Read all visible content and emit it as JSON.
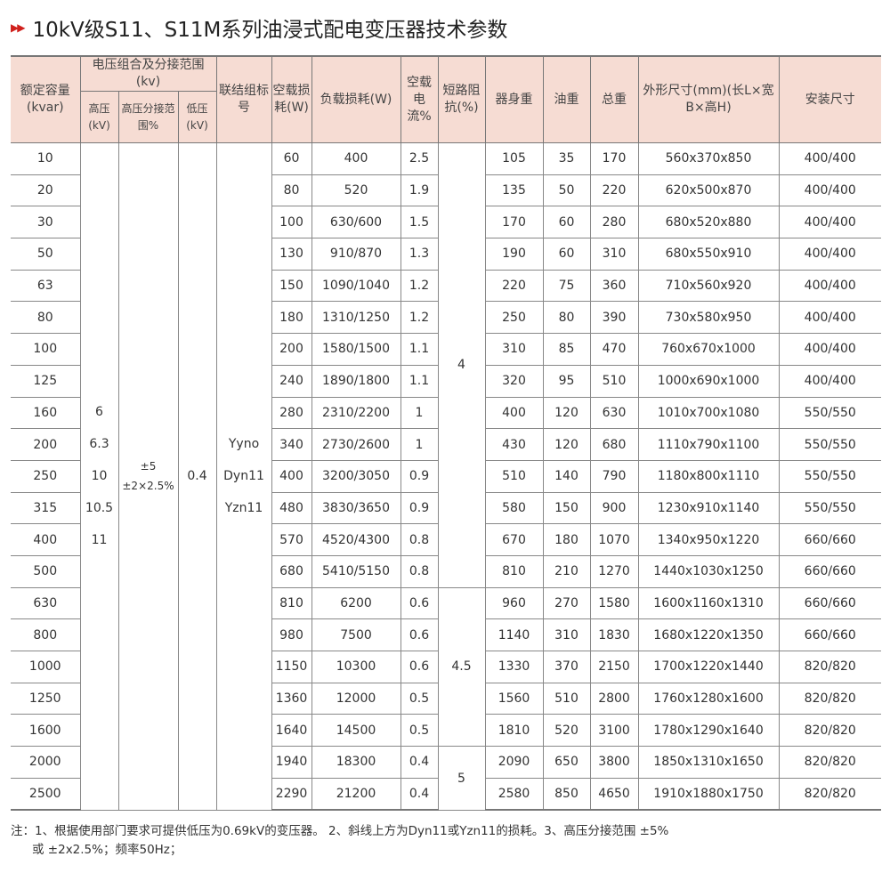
{
  "title": "10kV级S11、S11M系列油浸式配电变压器技术参数",
  "header": {
    "capacity": "额定容量(kvar)",
    "voltage_group": "电压组合及分接范围(kv)",
    "hv": "高压(kV)",
    "tap": "高压分接范围%",
    "lv": "低压(kV)",
    "connection": "联结组标号",
    "no_load_loss": "空载损耗(W)",
    "load_loss": "负载损耗(W)",
    "no_load_current": "空载电流%",
    "impedance": "短路阻抗(%)",
    "body_weight": "器身重",
    "oil_weight": "油重",
    "total_weight": "总重",
    "dimensions": "外形尺寸(mm)(长L×宽B×高H)",
    "install": "安装尺寸"
  },
  "merged": {
    "hv": [
      "6",
      "6.3",
      "10",
      "10.5",
      "11"
    ],
    "tap": [
      "±5",
      "±2×2.5%"
    ],
    "lv": "0.4",
    "connection": [
      "Yyno",
      "Dyn11",
      "Yzn11"
    ],
    "impedance": [
      "4",
      "4.5",
      "5"
    ]
  },
  "rows": [
    [
      "10",
      "60",
      "400",
      "2.5",
      "105",
      "35",
      "170",
      "560x370x850",
      "400/400"
    ],
    [
      "20",
      "80",
      "520",
      "1.9",
      "135",
      "50",
      "220",
      "620x500x870",
      "400/400"
    ],
    [
      "30",
      "100",
      "630/600",
      "1.5",
      "170",
      "60",
      "280",
      "680x520x880",
      "400/400"
    ],
    [
      "50",
      "130",
      "910/870",
      "1.3",
      "190",
      "60",
      "310",
      "680x550x910",
      "400/400"
    ],
    [
      "63",
      "150",
      "1090/1040",
      "1.2",
      "220",
      "75",
      "360",
      "710x560x920",
      "400/400"
    ],
    [
      "80",
      "180",
      "1310/1250",
      "1.2",
      "250",
      "80",
      "390",
      "730x580x950",
      "400/400"
    ],
    [
      "100",
      "200",
      "1580/1500",
      "1.1",
      "310",
      "85",
      "470",
      "760x670x1000",
      "400/400"
    ],
    [
      "125",
      "240",
      "1890/1800",
      "1.1",
      "320",
      "95",
      "510",
      "1000x690x1000",
      "400/400"
    ],
    [
      "160",
      "280",
      "2310/2200",
      "1",
      "400",
      "120",
      "630",
      "1010x700x1080",
      "550/550"
    ],
    [
      "200",
      "340",
      "2730/2600",
      "1",
      "430",
      "120",
      "680",
      "1110x790x1100",
      "550/550"
    ],
    [
      "250",
      "400",
      "3200/3050",
      "0.9",
      "510",
      "140",
      "790",
      "1180x800x1110",
      "550/550"
    ],
    [
      "315",
      "480",
      "3830/3650",
      "0.9",
      "580",
      "150",
      "900",
      "1230x910x1140",
      "550/550"
    ],
    [
      "400",
      "570",
      "4520/4300",
      "0.8",
      "670",
      "180",
      "1070",
      "1340x950x1220",
      "660/660"
    ],
    [
      "500",
      "680",
      "5410/5150",
      "0.8",
      "810",
      "210",
      "1270",
      "1440x1030x1250",
      "660/660"
    ],
    [
      "630",
      "810",
      "6200",
      "0.6",
      "960",
      "270",
      "1580",
      "1600x1160x1310",
      "660/660"
    ],
    [
      "800",
      "980",
      "7500",
      "0.6",
      "1140",
      "310",
      "1830",
      "1680x1220x1350",
      "660/660"
    ],
    [
      "1000",
      "1150",
      "10300",
      "0.6",
      "1330",
      "370",
      "2150",
      "1700x1220x1440",
      "820/820"
    ],
    [
      "1250",
      "1360",
      "12000",
      "0.5",
      "1560",
      "510",
      "2800",
      "1760x1280x1600",
      "820/820"
    ],
    [
      "1600",
      "1640",
      "14500",
      "0.5",
      "1810",
      "520",
      "3100",
      "1780x1290x1640",
      "820/820"
    ],
    [
      "2000",
      "1940",
      "18300",
      "0.4",
      "2090",
      "650",
      "3800",
      "1850x1310x1650",
      "820/820"
    ],
    [
      "2500",
      "2290",
      "21200",
      "0.4",
      "2580",
      "850",
      "4650",
      "1910x1880x1750",
      "820/820"
    ]
  ],
  "note": {
    "line1": "注：1、根据使用部门要求可提供低压为0.69kV的变压器。 2、斜线上方为Dyn11或Yzn11的损耗。3、高压分接范围 ±5%",
    "line2": "或 ±2x2.5%；频率50Hz；"
  },
  "colors": {
    "accent": "#d0201c",
    "header_bg": "#f6dcd3"
  }
}
